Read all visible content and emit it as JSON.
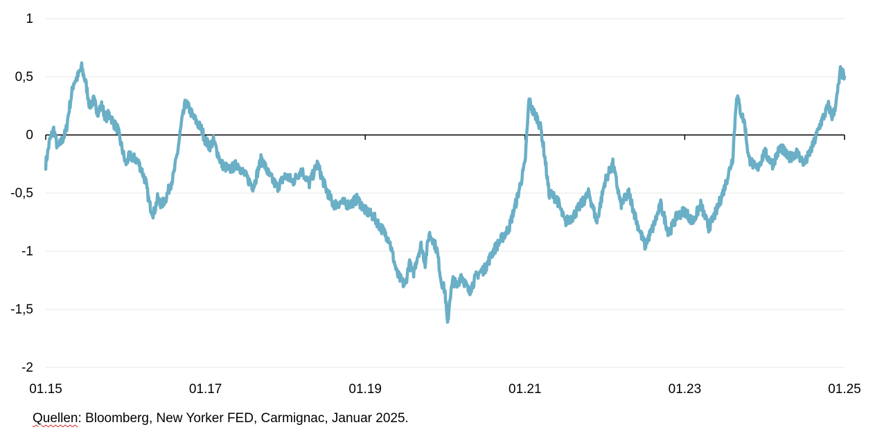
{
  "chart_data": {
    "type": "line",
    "title": "",
    "xlabel": "",
    "ylabel": "",
    "xlim": [
      2015.0,
      2025.0
    ],
    "ylim": [
      -2,
      1
    ],
    "x_tick_labels": [
      "01.15",
      "01.17",
      "01.19",
      "01.21",
      "01.23",
      "01.25"
    ],
    "x_tick_values": [
      2015,
      2017,
      2019,
      2021,
      2023,
      2025
    ],
    "y_tick_labels": [
      "1",
      "0,5",
      "0",
      "-0,5",
      "-1",
      "-1,5",
      "-2"
    ],
    "y_tick_values": [
      1,
      0.5,
      0,
      -0.5,
      -1,
      -1.5,
      -2
    ],
    "grid": true,
    "legend": "none",
    "series": [
      {
        "color": "#6aafc6",
        "x": [
          2015.0,
          2015.05,
          2015.1,
          2015.15,
          2015.2,
          2015.25,
          2015.3,
          2015.35,
          2015.4,
          2015.45,
          2015.5,
          2015.55,
          2015.6,
          2015.65,
          2015.7,
          2015.75,
          2015.8,
          2015.85,
          2015.9,
          2015.95,
          2016.0,
          2016.05,
          2016.1,
          2016.15,
          2016.2,
          2016.25,
          2016.3,
          2016.35,
          2016.4,
          2016.45,
          2016.5,
          2016.55,
          2016.6,
          2016.65,
          2016.7,
          2016.75,
          2016.8,
          2016.85,
          2016.9,
          2016.95,
          2017.0,
          2017.05,
          2017.1,
          2017.15,
          2017.2,
          2017.3,
          2017.4,
          2017.5,
          2017.6,
          2017.7,
          2017.8,
          2017.9,
          2018.0,
          2018.1,
          2018.2,
          2018.3,
          2018.4,
          2018.5,
          2018.6,
          2018.7,
          2018.8,
          2018.9,
          2019.0,
          2019.1,
          2019.2,
          2019.3,
          2019.4,
          2019.5,
          2019.55,
          2019.6,
          2019.65,
          2019.7,
          2019.75,
          2019.8,
          2019.85,
          2019.9,
          2019.95,
          2020.0,
          2020.03,
          2020.06,
          2020.1,
          2020.15,
          2020.2,
          2020.3,
          2020.4,
          2020.5,
          2020.6,
          2020.7,
          2020.8,
          2020.9,
          2021.0,
          2021.05,
          2021.1,
          2021.15,
          2021.2,
          2021.25,
          2021.3,
          2021.4,
          2021.5,
          2021.6,
          2021.7,
          2021.8,
          2021.9,
          2022.0,
          2022.1,
          2022.2,
          2022.3,
          2022.4,
          2022.5,
          2022.6,
          2022.7,
          2022.8,
          2022.9,
          2023.0,
          2023.1,
          2023.2,
          2023.3,
          2023.4,
          2023.5,
          2023.6,
          2023.65,
          2023.7,
          2023.75,
          2023.8,
          2023.9,
          2024.0,
          2024.1,
          2024.2,
          2024.3,
          2024.4,
          2024.5,
          2024.6,
          2024.7,
          2024.8,
          2024.85,
          2024.9,
          2024.95,
          2025.0
        ],
        "y": [
          -0.25,
          -0.05,
          0.05,
          -0.12,
          -0.05,
          0.02,
          0.25,
          0.45,
          0.5,
          0.58,
          0.45,
          0.25,
          0.3,
          0.2,
          0.25,
          0.15,
          0.18,
          0.1,
          0.05,
          -0.1,
          -0.25,
          -0.18,
          -0.2,
          -0.22,
          -0.3,
          -0.4,
          -0.6,
          -0.68,
          -0.55,
          -0.6,
          -0.55,
          -0.45,
          -0.35,
          -0.15,
          0.1,
          0.28,
          0.22,
          0.15,
          0.1,
          0.05,
          -0.05,
          -0.1,
          -0.05,
          -0.15,
          -0.25,
          -0.3,
          -0.25,
          -0.35,
          -0.45,
          -0.2,
          -0.35,
          -0.45,
          -0.35,
          -0.4,
          -0.3,
          -0.42,
          -0.25,
          -0.45,
          -0.6,
          -0.58,
          -0.6,
          -0.55,
          -0.65,
          -0.7,
          -0.8,
          -0.9,
          -1.2,
          -1.3,
          -1.1,
          -1.2,
          -1.05,
          -0.95,
          -1.1,
          -0.85,
          -0.9,
          -1.0,
          -1.25,
          -1.35,
          -1.65,
          -1.4,
          -1.25,
          -1.3,
          -1.2,
          -1.35,
          -1.2,
          -1.15,
          -1.0,
          -0.9,
          -0.8,
          -0.55,
          -0.25,
          0.3,
          0.2,
          0.15,
          0.05,
          -0.2,
          -0.5,
          -0.55,
          -0.75,
          -0.7,
          -0.6,
          -0.5,
          -0.75,
          -0.4,
          -0.25,
          -0.6,
          -0.5,
          -0.75,
          -0.95,
          -0.8,
          -0.6,
          -0.85,
          -0.7,
          -0.65,
          -0.75,
          -0.6,
          -0.8,
          -0.65,
          -0.45,
          -0.2,
          0.35,
          0.2,
          0.1,
          -0.2,
          -0.3,
          -0.15,
          -0.25,
          -0.1,
          -0.2,
          -0.15,
          -0.25,
          -0.1,
          0.1,
          0.25,
          0.15,
          0.3,
          0.55,
          0.5
        ]
      }
    ]
  },
  "source_note": {
    "prefix": "Quellen",
    "text": ": Bloomberg, New Yorker FED, Carmignac, Januar 2025."
  }
}
